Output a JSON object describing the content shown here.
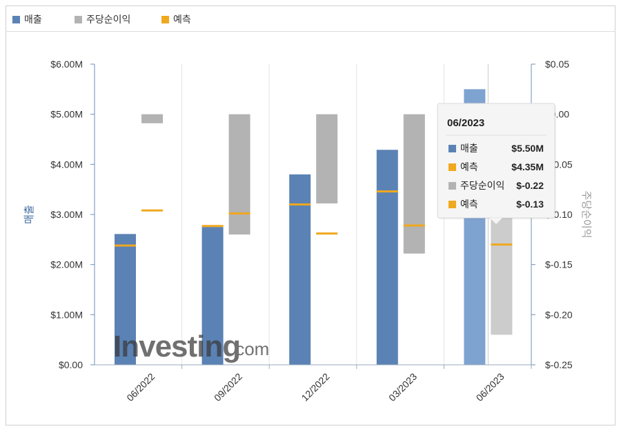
{
  "legend": [
    {
      "label": "매출",
      "color": "#5b82b4"
    },
    {
      "label": "주당순이익",
      "color": "#b3b3b3"
    },
    {
      "label": "예측",
      "color": "#f0a81e"
    }
  ],
  "watermark": {
    "brand": "Investing",
    "suffix": ".com"
  },
  "chart_data": {
    "type": "bar",
    "categories": [
      "06/2022",
      "09/2022",
      "12/2022",
      "03/2023",
      "06/2023"
    ],
    "y_left": {
      "label": "매출",
      "ylim": [
        0,
        6000000
      ],
      "ticks": [
        "$0.00",
        "$1.00M",
        "$2.00M",
        "$3.00M",
        "$4.00M",
        "$5.00M",
        "$6.00M"
      ]
    },
    "y_right": {
      "label": "주당순이익",
      "ylim": [
        -0.25,
        0.05
      ],
      "ticks": [
        "$-0.25",
        "$-0.20",
        "$-0.15",
        "$-0.10",
        "$-0.05",
        "$0.00",
        "$0.05"
      ]
    },
    "series": [
      {
        "name": "매출",
        "axis": "left",
        "values": [
          2610000,
          2750000,
          3800000,
          4290000,
          5500000
        ]
      },
      {
        "name": "예측",
        "axis": "left",
        "values": [
          2380000,
          2770000,
          3200000,
          3460000,
          4350000
        ]
      },
      {
        "name": "주당순이익",
        "axis": "right",
        "values": [
          -0.009,
          -0.12,
          -0.089,
          -0.139,
          -0.22
        ]
      },
      {
        "name": "예측",
        "axis": "right",
        "values": [
          -0.096,
          -0.099,
          -0.119,
          -0.111,
          -0.13
        ]
      }
    ],
    "highlight_index": 4,
    "grid": "vertical-category-dividers",
    "legend_position": "top"
  },
  "tooltip": {
    "title": "06/2023",
    "rows": [
      {
        "label": "매출",
        "value": "$5.50M",
        "color": "#5b82b4"
      },
      {
        "label": "예측",
        "value": "$4.35M",
        "color": "#f0a81e"
      },
      {
        "label": "주당순이익",
        "value": "$-0.22",
        "color": "#b3b3b3"
      },
      {
        "label": "예측",
        "value": "$-0.13",
        "color": "#f0a81e"
      }
    ]
  }
}
